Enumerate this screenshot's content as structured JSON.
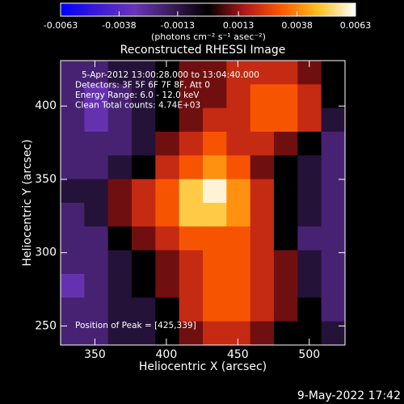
{
  "chart_data": {
    "type": "heatmap",
    "title": "Reconstructed RHESSI Image",
    "x_label": "Heliocentric X (arcsec)",
    "y_label": "Heliocentric Y (arcsec)",
    "colorbar_label": "(photons cm⁻² s⁻¹ asec⁻²)",
    "annotations": [
      "5-Apr-2012 13:00:28.000 to 13:04:40.000",
      "Detectors: 3F 5F 6F 7F 8F, Att 0",
      "Energy Range: 6.0 - 12.0 keV",
      "Clean     Total counts: 4.74E+03"
    ],
    "peak_annotation": "Position of Peak = [425,339]",
    "timestamp": "9-May-2022 17:42",
    "xlim": [
      326,
      525
    ],
    "ylim": [
      237,
      431
    ],
    "xticks": [
      350,
      400,
      450,
      500
    ],
    "yticks": [
      250,
      300,
      350,
      400
    ],
    "zlim": [
      -0.0063,
      0.0063
    ],
    "zticks": [
      -0.0063,
      -0.0038,
      -0.0013,
      0.0013,
      0.0038,
      0.0063
    ],
    "colormap": [
      "#0000ff",
      "#3a1ad8",
      "#6a34b8",
      "#3a1c5a",
      "#000000",
      "#b01818",
      "#ff5a00",
      "#ffc020",
      "#ffffff"
    ],
    "z": [
      [
        -0.002,
        -0.002,
        -0.001,
        -0.001,
        0.0,
        0.001,
        0.001,
        0.002,
        0.002,
        0.002,
        0.001,
        0.0
      ],
      [
        -0.002,
        -0.003,
        -0.002,
        -0.001,
        0.0,
        0.001,
        0.001,
        0.002,
        0.003,
        0.003,
        0.002,
        0.0
      ],
      [
        -0.002,
        -0.003,
        -0.002,
        -0.001,
        0.0,
        0.001,
        0.002,
        0.002,
        0.003,
        0.003,
        0.002,
        -0.001
      ],
      [
        -0.002,
        -0.002,
        -0.002,
        -0.001,
        0.001,
        0.002,
        0.003,
        0.002,
        0.002,
        0.001,
        0.0,
        -0.002
      ],
      [
        -0.002,
        -0.002,
        -0.001,
        0.0,
        0.002,
        0.003,
        0.004,
        0.003,
        0.001,
        0.0,
        -0.001,
        -0.002
      ],
      [
        -0.001,
        -0.001,
        0.001,
        0.002,
        0.003,
        0.005,
        0.006,
        0.004,
        0.002,
        0.0,
        -0.001,
        -0.002
      ],
      [
        -0.002,
        -0.001,
        0.001,
        0.002,
        0.003,
        0.005,
        0.005,
        0.004,
        0.002,
        0.0,
        -0.001,
        -0.002
      ],
      [
        -0.002,
        -0.002,
        0.0,
        0.001,
        0.002,
        0.003,
        0.003,
        0.003,
        0.002,
        0.0,
        -0.002,
        -0.002
      ],
      [
        -0.002,
        -0.002,
        -0.001,
        0.0,
        0.001,
        0.002,
        0.003,
        0.003,
        0.002,
        0.001,
        -0.001,
        -0.002
      ],
      [
        -0.003,
        -0.002,
        -0.001,
        0.0,
        0.001,
        0.002,
        0.003,
        0.003,
        0.002,
        0.001,
        -0.001,
        -0.002
      ],
      [
        -0.002,
        -0.002,
        -0.001,
        -0.001,
        0.0,
        0.002,
        0.003,
        0.003,
        0.002,
        0.001,
        0.0,
        -0.002
      ],
      [
        -0.002,
        -0.002,
        -0.001,
        -0.001,
        0.0,
        0.001,
        0.002,
        0.002,
        0.001,
        0.0,
        0.0,
        -0.001
      ]
    ]
  }
}
